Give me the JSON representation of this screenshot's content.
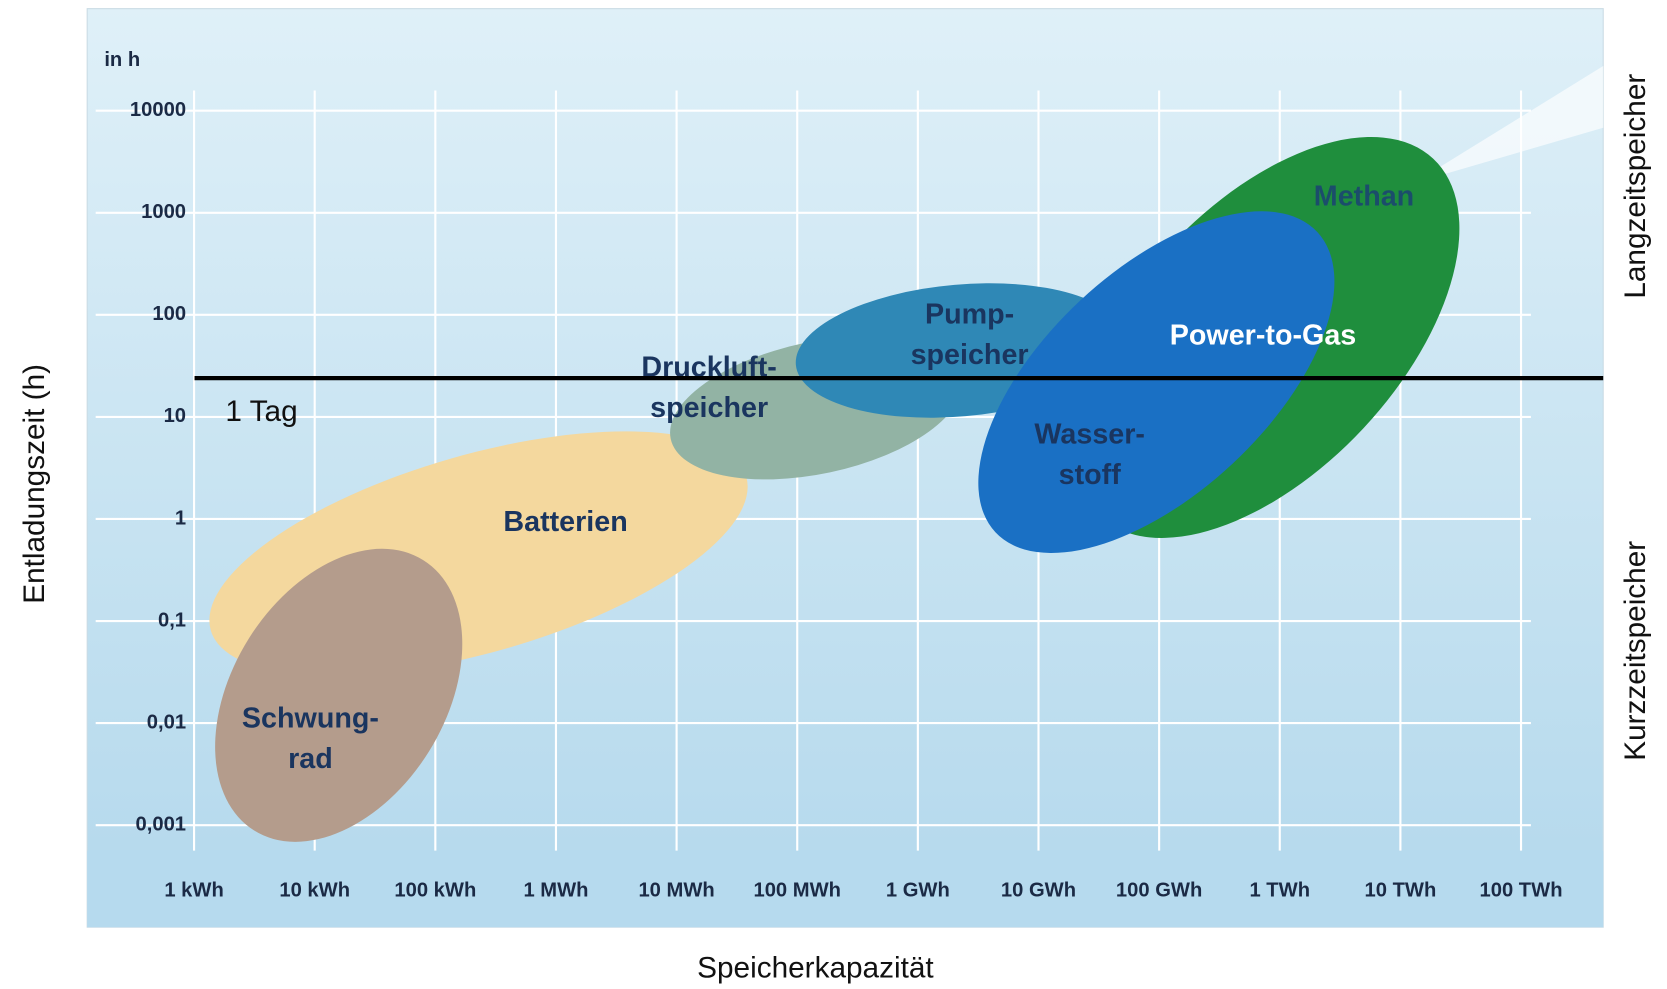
{
  "chart_data": {
    "type": "region",
    "unit_label": "in h",
    "x_label": "Speicherkapazität",
    "y_label": "Entladungszeit (h)",
    "side_labels": [
      "Langzeitspeicher",
      "Kurzzeitspeicher"
    ],
    "xscale": "log",
    "yscale": "log",
    "grid": true,
    "xlim": [
      0.13,
      480000000000
    ],
    "xticks": [
      {
        "value": 1,
        "label": "1 kWh"
      },
      {
        "value": 10,
        "label": "10 kWh"
      },
      {
        "value": 100,
        "label": "100 kWh"
      },
      {
        "value": 1000,
        "label": "1 MWh"
      },
      {
        "value": 10000,
        "label": "10 MWh"
      },
      {
        "value": 100000,
        "label": "100 MWh"
      },
      {
        "value": 1000000,
        "label": "1 GWh"
      },
      {
        "value": 10000000,
        "label": "10 GWh"
      },
      {
        "value": 100000000,
        "label": "100 GWh"
      },
      {
        "value": 1000000000,
        "label": "1 TWh"
      },
      {
        "value": 10000000000,
        "label": "10 TWh"
      },
      {
        "value": 100000000000,
        "label": "100 TWh"
      }
    ],
    "ylim": [
      0.0001,
      100000
    ],
    "yticks": [
      {
        "value": 0.001,
        "label": "0,001"
      },
      {
        "value": 0.01,
        "label": "0,01"
      },
      {
        "value": 0.1,
        "label": "0,1"
      },
      1,
      10,
      100,
      1000,
      10000
    ],
    "regions": [
      {
        "labels": [
          {
            "lines": [
              "Batterien"
            ],
            "color": "#1a355f"
          }
        ],
        "color": "#f4d89e",
        "x": [
          1.3,
          40000
        ],
        "y": [
          0.03,
          7
        ]
      },
      {
        "labels": [
          {
            "lines": [
              "Schwung-",
              "rad"
            ],
            "color": "#1a355f"
          }
        ],
        "color": "#b49c8c",
        "x": [
          1,
          250
        ],
        "y": [
          0.0007,
          0.5
        ]
      },
      {
        "labels": [
          {
            "lines": [
              "Druckluft-",
              "speicher"
            ],
            "color": "#1a355f"
          }
        ],
        "color": "#92b3a4",
        "x": [
          9000,
          2300000
        ],
        "y": [
          2.5,
          60
        ]
      },
      {
        "labels": [
          {
            "lines": [
              "Pump-",
              "speicher"
            ],
            "color": "#1a355f"
          }
        ],
        "color": "#2f88b6",
        "x": [
          100000,
          50000000
        ],
        "y": [
          10,
          200
        ]
      },
      {
        "labels": [
          {
            "lines": [
              "Methan"
            ],
            "color": "#1b4d6b"
          }
        ],
        "color": "#1f8e3d",
        "x": [
          20000000,
          30000000000
        ],
        "y": [
          0.9,
          4000
        ]
      },
      {
        "labels": [
          {
            "lines": [
              "Power-to-Gas"
            ],
            "color": "#ffffff"
          },
          {
            "lines": [
              "Wasser-",
              "stoff"
            ],
            "color": "#1a355f"
          }
        ],
        "color": "#1a70c4",
        "x": [
          3000000,
          3000000000
        ],
        "y": [
          0.6,
          800
        ]
      }
    ],
    "reference_line": {
      "value": 24,
      "label": "1 Tag",
      "color": "#000000"
    }
  }
}
